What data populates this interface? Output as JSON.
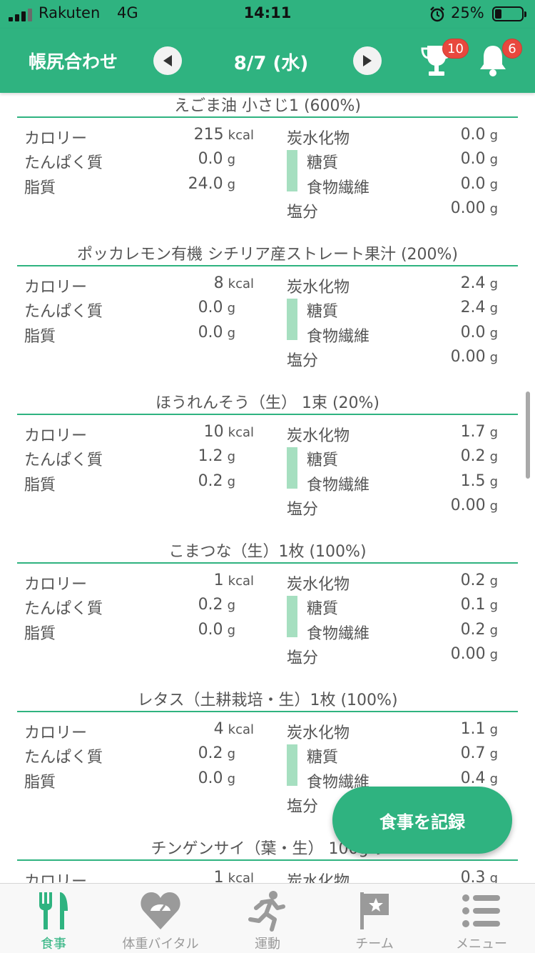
{
  "status_bar": {
    "carrier": "Rakuten",
    "network": "4G",
    "time": "14:11",
    "battery_percent": "25%",
    "battery_level": 0.25
  },
  "header": {
    "title": "帳尻合わせ",
    "date": "8/7 (水)",
    "trophy_badge": "10",
    "bell_badge": "6",
    "accent_color": "#2fb380"
  },
  "labels": {
    "calorie": "カロリー",
    "protein": "たんぱく質",
    "fat": "脂質",
    "carbs": "炭水化物",
    "sugar": "糖質",
    "fiber": "食物繊維",
    "salt": "塩分",
    "unit_kcal": "kcal",
    "unit_g": "g"
  },
  "foods": [
    {
      "name": "えごま油 小さじ1  (600%)",
      "calorie": "215",
      "protein": "0.0",
      "fat": "24.0",
      "carbs": "0.0",
      "sugar": "0.0",
      "fiber": "0.0",
      "salt": "0.00"
    },
    {
      "name": "ポッカレモン有機 シチリア産ストレート果汁  (200%)",
      "calorie": "8",
      "protein": "0.0",
      "fat": "0.0",
      "carbs": "2.4",
      "sugar": "2.4",
      "fiber": "0.0",
      "salt": "0.00"
    },
    {
      "name": "ほうれんそう（生） 1束  (20%)",
      "calorie": "10",
      "protein": "1.2",
      "fat": "0.2",
      "carbs": "1.7",
      "sugar": "0.2",
      "fiber": "1.5",
      "salt": "0.00"
    },
    {
      "name": "こまつな（生）1枚  (100%)",
      "calorie": "1",
      "protein": "0.2",
      "fat": "0.0",
      "carbs": "0.2",
      "sugar": "0.1",
      "fiber": "0.2",
      "salt": "0.00"
    },
    {
      "name": "レタス（土耕栽培・生）1枚  (100%)",
      "calorie": "4",
      "protein": "0.2",
      "fat": "0.0",
      "carbs": "1.1",
      "sugar": "0.7",
      "fiber": "0.4",
      "salt": ""
    },
    {
      "name": "チンゲンサイ（葉・生） 100gあ",
      "calorie": "1",
      "protein": "",
      "fat": "",
      "carbs": "0.3",
      "sugar": "",
      "fiber": "",
      "salt": ""
    }
  ],
  "fab": {
    "label": "食事を記録"
  },
  "tabs": [
    {
      "label": "食事",
      "icon": "fork-knife-icon",
      "active": true
    },
    {
      "label": "体重バイタル",
      "icon": "heart-scale-icon",
      "active": false
    },
    {
      "label": "運動",
      "icon": "running-icon",
      "active": false
    },
    {
      "label": "チーム",
      "icon": "flag-star-icon",
      "active": false
    },
    {
      "label": "メニュー",
      "icon": "menu-list-icon",
      "active": false
    }
  ]
}
